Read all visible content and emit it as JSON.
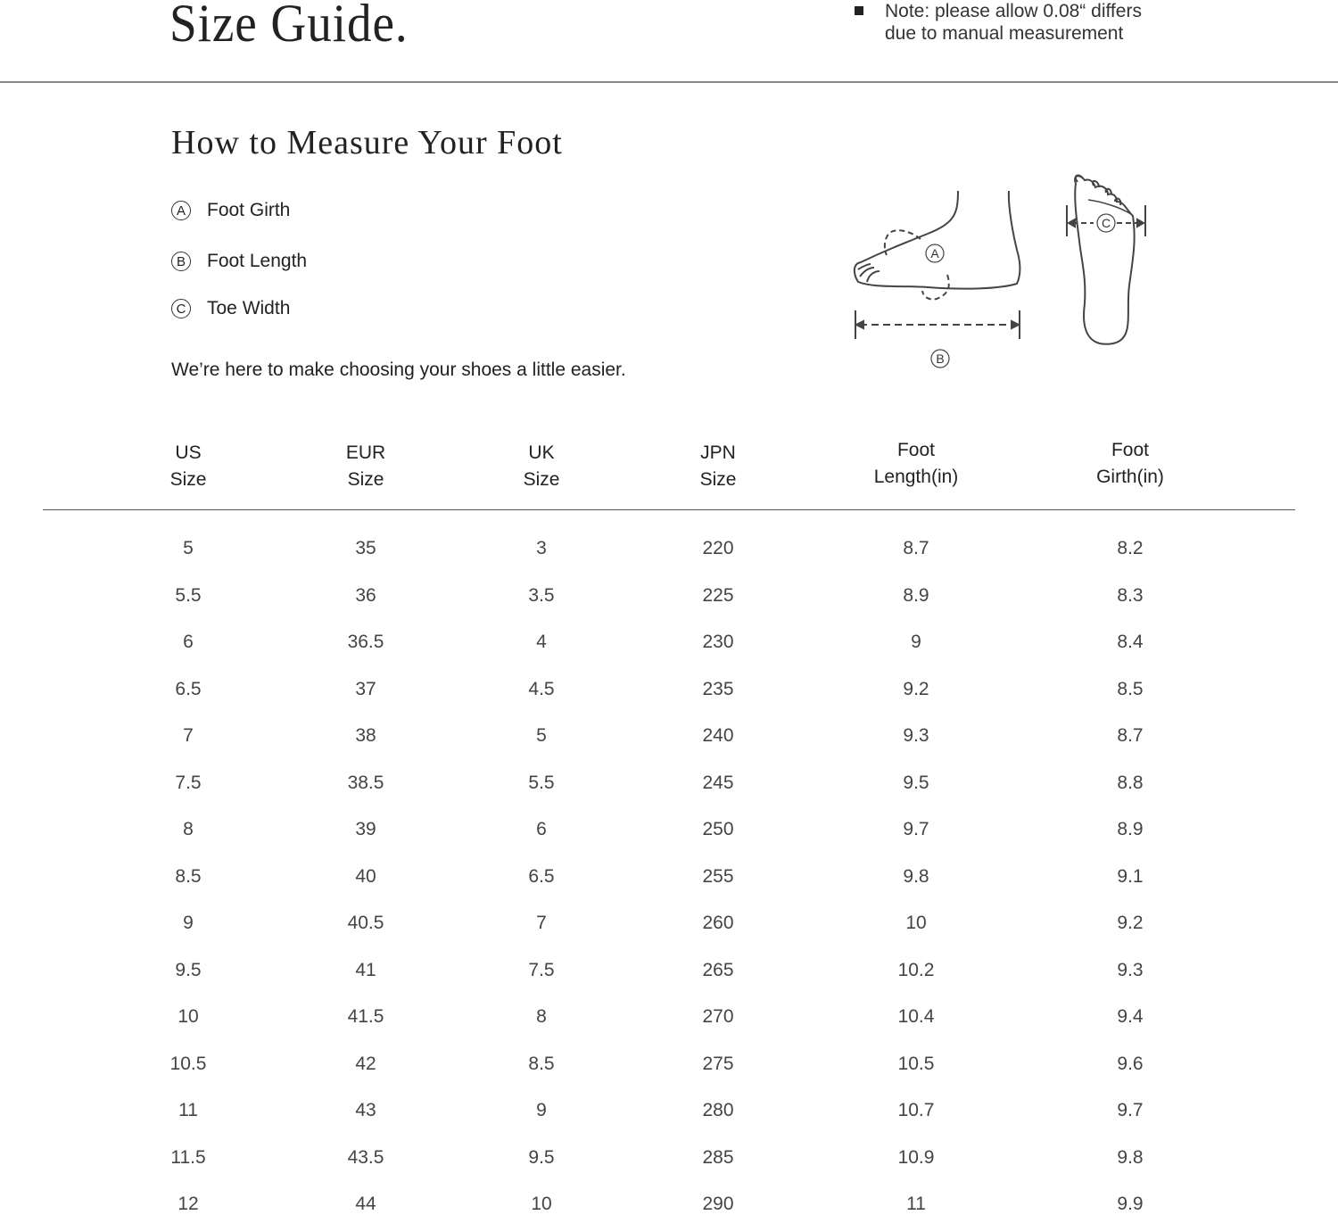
{
  "header": {
    "title": "Size Guide.",
    "note_line1": "Note: please allow 0.08“ differs",
    "note_line2": "due to manual measurement"
  },
  "measure": {
    "title": "How to Measure Your Foot",
    "items": [
      {
        "letter": "A",
        "label": "Foot Girth"
      },
      {
        "letter": "B",
        "label": "Foot Length"
      },
      {
        "letter": "C",
        "label": "Toe Width"
      }
    ],
    "tagline": "We’re here to make choosing your shoes a little easier.",
    "diagram_labels": {
      "a": "A",
      "b": "B",
      "c": "C"
    }
  },
  "table": {
    "columns": [
      {
        "line1": "US",
        "line2": "Size"
      },
      {
        "line1": "EUR",
        "line2": "Size"
      },
      {
        "line1": "UK",
        "line2": "Size"
      },
      {
        "line1": "JPN",
        "line2": "Size"
      },
      {
        "line1": "Foot",
        "line2": "Length(in)"
      },
      {
        "line1": "Foot",
        "line2": "Girth(in)"
      }
    ],
    "rows": [
      [
        "5",
        "35",
        "3",
        "220",
        "8.7",
        "8.2"
      ],
      [
        "5.5",
        "36",
        "3.5",
        "225",
        "8.9",
        "8.3"
      ],
      [
        "6",
        "36.5",
        "4",
        "230",
        "9",
        "8.4"
      ],
      [
        "6.5",
        "37",
        "4.5",
        "235",
        "9.2",
        "8.5"
      ],
      [
        "7",
        "38",
        "5",
        "240",
        "9.3",
        "8.7"
      ],
      [
        "7.5",
        "38.5",
        "5.5",
        "245",
        "9.5",
        "8.8"
      ],
      [
        "8",
        "39",
        "6",
        "250",
        "9.7",
        "8.9"
      ],
      [
        "8.5",
        "40",
        "6.5",
        "255",
        "9.8",
        "9.1"
      ],
      [
        "9",
        "40.5",
        "7",
        "260",
        "10",
        "9.2"
      ],
      [
        "9.5",
        "41",
        "7.5",
        "265",
        "10.2",
        "9.3"
      ],
      [
        "10",
        "41.5",
        "8",
        "270",
        "10.4",
        "9.4"
      ],
      [
        "10.5",
        "42",
        "8.5",
        "275",
        "10.5",
        "9.6"
      ],
      [
        "11",
        "43",
        "9",
        "280",
        "10.7",
        "9.7"
      ],
      [
        "11.5",
        "43.5",
        "9.5",
        "285",
        "10.9",
        "9.8"
      ],
      [
        "12",
        "44",
        "10",
        "290",
        "11",
        "9.9"
      ]
    ]
  }
}
